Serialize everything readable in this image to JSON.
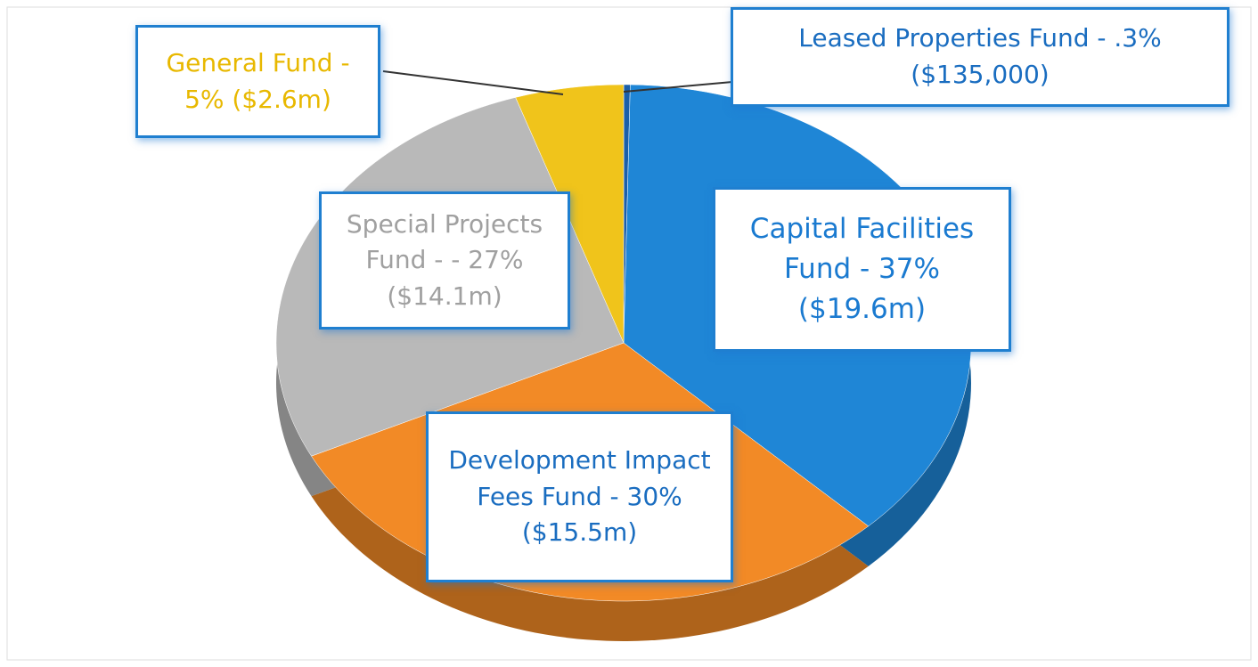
{
  "chart_data": {
    "type": "pie",
    "categories": [
      "Leased Properties Fund - .3% ($135,000)",
      "Capital Facilities Fund - 37% ($19.6m)",
      "Development Impact Fees Fund - 30% ($15.5m)",
      "Special Projects Fund - - 27% ($14.1m)",
      "General Fund - 5% ($2.6m)"
    ],
    "values": [
      0.3,
      37,
      30,
      27,
      5
    ],
    "colors": [
      "#1b5fa8",
      "#1f86d6",
      "#f28a26",
      "#b9b9b9",
      "#f0c41b"
    ]
  }
}
